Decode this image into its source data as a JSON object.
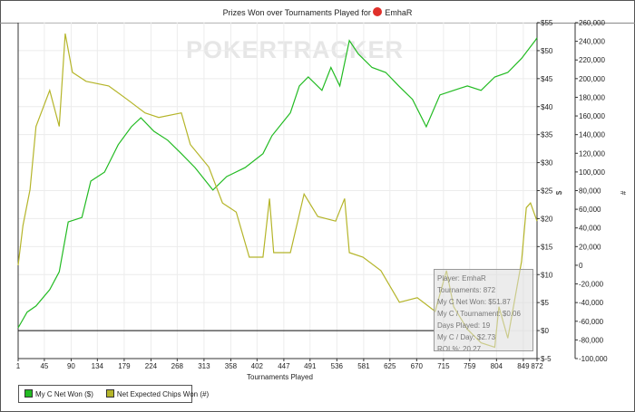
{
  "chart_data": {
    "type": "line",
    "title": "Prizes Won over Tournaments Played for",
    "player": "EmhaR",
    "xlabel": "Tournaments Played",
    "ylabel_left": "$",
    "ylabel_right": "#",
    "watermark": "POKERTRACKER",
    "xlim": [
      1,
      872
    ],
    "x_ticks": [
      1,
      45,
      90,
      134,
      179,
      224,
      268,
      313,
      358,
      402,
      447,
      491,
      536,
      581,
      625,
      670,
      715,
      759,
      804,
      849,
      872
    ],
    "ylim_left": [
      -5,
      55
    ],
    "y_ticks_left": [
      "$-5",
      "$0",
      "$5",
      "$10",
      "$15",
      "$20",
      "$25",
      "$30",
      "$35",
      "$40",
      "$45",
      "$50",
      "$55"
    ],
    "ylim_right": [
      -100000,
      260000
    ],
    "y_ticks_right": [
      "-100,000",
      "-80,000",
      "-60,000",
      "-40,000",
      "-20,000",
      "0",
      "20,000",
      "40,000",
      "60,000",
      "80,000",
      "100,000",
      "120,000",
      "140,000",
      "160,000",
      "180,000",
      "200,000",
      "220,000",
      "240,000",
      "260,000"
    ],
    "grid": true,
    "legend_position": "bottom-left",
    "series": [
      {
        "name": "My C Net Won ($)",
        "axis": "left",
        "color": "#22bb22",
        "points": [
          [
            1,
            0.5
          ],
          [
            16,
            3.3
          ],
          [
            31,
            4.4
          ],
          [
            54,
            7.3
          ],
          [
            70,
            10.5
          ],
          [
            85,
            19.4
          ],
          [
            108,
            20.2
          ],
          [
            123,
            26.7
          ],
          [
            146,
            28.3
          ],
          [
            169,
            33.2
          ],
          [
            191,
            36.4
          ],
          [
            207,
            38
          ],
          [
            229,
            35.6
          ],
          [
            252,
            34
          ],
          [
            275,
            31.6
          ],
          [
            298,
            29.1
          ],
          [
            328,
            25.1
          ],
          [
            351,
            27.5
          ],
          [
            382,
            29.1
          ],
          [
            412,
            31.6
          ],
          [
            427,
            34.8
          ],
          [
            458,
            38.9
          ],
          [
            473,
            43.7
          ],
          [
            488,
            45.3
          ],
          [
            511,
            42.9
          ],
          [
            526,
            47
          ],
          [
            541,
            43.7
          ],
          [
            557,
            51.8
          ],
          [
            572,
            49.4
          ],
          [
            595,
            47
          ],
          [
            618,
            46.1
          ],
          [
            640,
            43.7
          ],
          [
            663,
            41.3
          ],
          [
            686,
            36.4
          ],
          [
            709,
            42.1
          ],
          [
            732,
            42.9
          ],
          [
            755,
            43.7
          ],
          [
            778,
            42.9
          ],
          [
            801,
            45.3
          ],
          [
            823,
            46.1
          ],
          [
            846,
            48.6
          ],
          [
            869,
            51.8
          ],
          [
            872,
            52.3
          ]
        ]
      },
      {
        "name": "Net Expected Chips Won (#)",
        "axis": "right",
        "color": "#b5b52a",
        "points": [
          [
            1,
            0
          ],
          [
            9,
            42500
          ],
          [
            21,
            81100
          ],
          [
            31,
            148800
          ],
          [
            54,
            187400
          ],
          [
            70,
            148800
          ],
          [
            80,
            248300
          ],
          [
            92,
            206700
          ],
          [
            115,
            197100
          ],
          [
            153,
            192200
          ],
          [
            184,
            177700
          ],
          [
            214,
            163300
          ],
          [
            237,
            158400
          ],
          [
            275,
            163300
          ],
          [
            290,
            129400
          ],
          [
            321,
            105300
          ],
          [
            344,
            66700
          ],
          [
            367,
            57000
          ],
          [
            389,
            8700
          ],
          [
            412,
            8700
          ],
          [
            423,
            71500
          ],
          [
            430,
            13500
          ],
          [
            458,
            13500
          ],
          [
            481,
            76300
          ],
          [
            504,
            52200
          ],
          [
            534,
            47300
          ],
          [
            549,
            71500
          ],
          [
            557,
            13500
          ],
          [
            580,
            8700
          ],
          [
            610,
            -5800
          ],
          [
            641,
            -39600
          ],
          [
            671,
            -34800
          ],
          [
            701,
            -49300
          ],
          [
            720,
            -5800
          ],
          [
            732,
            -44400
          ],
          [
            755,
            -68600
          ],
          [
            778,
            -83100
          ],
          [
            801,
            -87900
          ],
          [
            808,
            -44400
          ],
          [
            823,
            -78200
          ],
          [
            846,
            3900
          ],
          [
            854,
            61800
          ],
          [
            861,
            66700
          ],
          [
            872,
            47300
          ]
        ]
      }
    ],
    "tooltip": [
      "Player: EmhaR",
      "Tournaments: 872",
      "My C Net Won: $51.87",
      "My C / Tournament: $0.06",
      "Days Played: 19",
      "My C / Day: $2.73",
      "ROI %: 20.27"
    ]
  }
}
